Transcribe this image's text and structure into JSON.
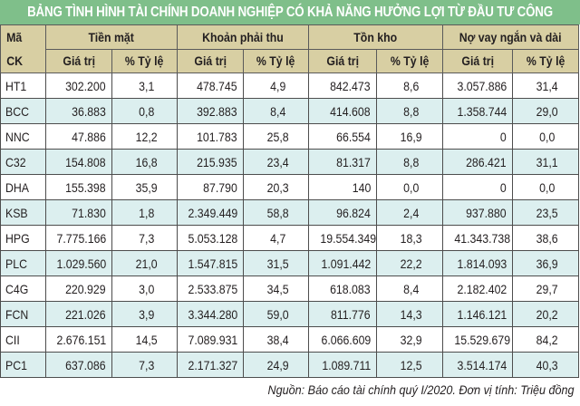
{
  "title": "BẢNG TÌNH HÌNH TÀI CHÍNH DOANH NGHIỆP CÓ KHẢ NĂNG HƯỞNG LỢI TỪ ĐẦU TƯ CÔNG",
  "header": {
    "code_line1": "Mã",
    "code_line2": "CK",
    "groups": [
      "Tiền mặt",
      "Khoản phải thu",
      "Tồn kho",
      "Nợ vay ngắn và dài"
    ],
    "sub": [
      "Giá trị",
      "% Tỷ lệ"
    ]
  },
  "rows": [
    {
      "code": "HT1",
      "values": [
        "302.200",
        "3,1",
        "478.745",
        "4,9",
        "842.473",
        "8,6",
        "3.057.886",
        "31,4"
      ]
    },
    {
      "code": "BCC",
      "values": [
        "36.883",
        "0,8",
        "392.883",
        "8,4",
        "414.608",
        "8,8",
        "1.358.744",
        "29,0"
      ]
    },
    {
      "code": "NNC",
      "values": [
        "47.886",
        "12,2",
        "101.783",
        "25,8",
        "66.554",
        "16,9",
        "0",
        "0,0"
      ]
    },
    {
      "code": "C32",
      "values": [
        "154.808",
        "16,8",
        "215.935",
        "23,4",
        "81.317",
        "8,8",
        "286.421",
        "31,1"
      ]
    },
    {
      "code": "DHA",
      "values": [
        "155.398",
        "35,9",
        "87.790",
        "20,3",
        "140",
        "0,0",
        "0",
        "0,0"
      ]
    },
    {
      "code": "KSB",
      "values": [
        "71.830",
        "1,8",
        "2.349.449",
        "58,8",
        "96.824",
        "2,4",
        "937.880",
        "23,5"
      ]
    },
    {
      "code": "HPG",
      "values": [
        "7.775.166",
        "7,3",
        "5.053.128",
        "4,7",
        "19.554.349",
        "18,3",
        "41.343.738",
        "38,6"
      ]
    },
    {
      "code": "PLC",
      "values": [
        "1.029.560",
        "21,0",
        "1.547.815",
        "31,5",
        "1.091.442",
        "22,2",
        "1.814.093",
        "36,9"
      ]
    },
    {
      "code": "C4G",
      "values": [
        "220.929",
        "3,0",
        "2.533.875",
        "34,5",
        "618.083",
        "8,4",
        "2.182.402",
        "29,7"
      ]
    },
    {
      "code": "FCN",
      "values": [
        "221.026",
        "3,9",
        "3.344.280",
        "59,0",
        "811.776",
        "14,3",
        "1.146.121",
        "20,2"
      ]
    },
    {
      "code": "CII",
      "values": [
        "2.676.151",
        "14,5",
        "7.089.931",
        "38,4",
        "6.066.609",
        "32,9",
        "15.529.679",
        "84,2"
      ]
    },
    {
      "code": "PC1",
      "values": [
        "637.086",
        "7,3",
        "2.171.327",
        "24,9",
        "1.089.711",
        "12,5",
        "3.514.174",
        "40,3"
      ]
    }
  ],
  "footer": "Nguồn: Báo cáo tài chính quý I/2020. Đơn vị tính: Triệu đồng",
  "colors": {
    "title_bg": "#7fbf8a",
    "header_bg": "#d8cfa3",
    "stripe_bg": "#dcefef",
    "border": "#4d4d4d"
  }
}
